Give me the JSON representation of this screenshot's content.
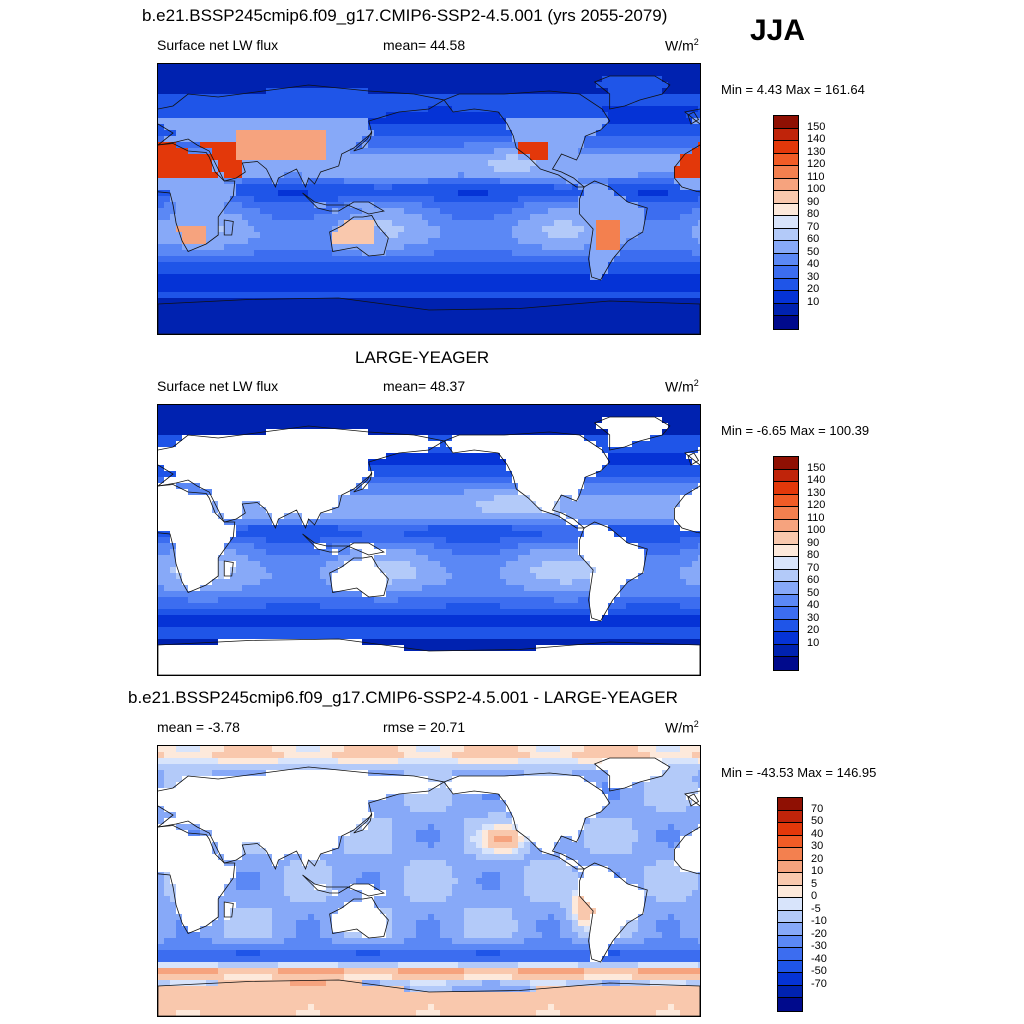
{
  "season": "JJA",
  "colors": {
    "ramp": [
      "#000a8c",
      "#0022b0",
      "#0533d6",
      "#1f55e8",
      "#3c6df0",
      "#5b88f5",
      "#87a9f8",
      "#b3caf9",
      "#d8e4fb",
      "#fde9db",
      "#f9c8ad",
      "#f6a37e",
      "#f3804f",
      "#f15c26",
      "#e3380a",
      "#c0240a",
      "#8f1003"
    ],
    "land": "#ffffff",
    "coast": "#111111"
  },
  "panels": [
    {
      "title": "b.e21.BSSP245cmip6.f09_g17.CMIP6-SSP2-4.5.001 (yrs 2055-2079)",
      "left": "Surface net LW flux",
      "center": "mean=  44.58",
      "units": "W/m",
      "units_sup": "2",
      "minmax": "Min =   4.43 Max = 161.64",
      "levels": [
        "150",
        "140",
        "130",
        "120",
        "110",
        "100",
        "90",
        "80",
        "70",
        "60",
        "50",
        "40",
        "30",
        "20",
        "10"
      ],
      "field": "total",
      "mask_land": false
    },
    {
      "title": "LARGE-YEAGER",
      "left": "Surface net LW flux",
      "center": "mean=  48.37",
      "units": "W/m",
      "units_sup": "2",
      "minmax": "Min =  -6.65 Max = 100.39",
      "levels": [
        "150",
        "140",
        "130",
        "120",
        "110",
        "100",
        "90",
        "80",
        "70",
        "60",
        "50",
        "40",
        "30",
        "20",
        "10"
      ],
      "field": "obs",
      "mask_land": true
    },
    {
      "title": "b.e21.BSSP245cmip6.f09_g17.CMIP6-SSP2-4.5.001 - LARGE-YEAGER",
      "left": "mean =  -3.78",
      "center": "rmse =  20.71",
      "units": "W/m",
      "units_sup": "2",
      "minmax": "Min = -43.53 Max = 146.95",
      "levels": [
        "70",
        "50",
        "40",
        "30",
        "20",
        "10",
        "5",
        "0",
        "-5",
        "-10",
        "-20",
        "-30",
        "-40",
        "-50",
        "-70"
      ],
      "field": "diff",
      "mask_land": true
    }
  ]
}
